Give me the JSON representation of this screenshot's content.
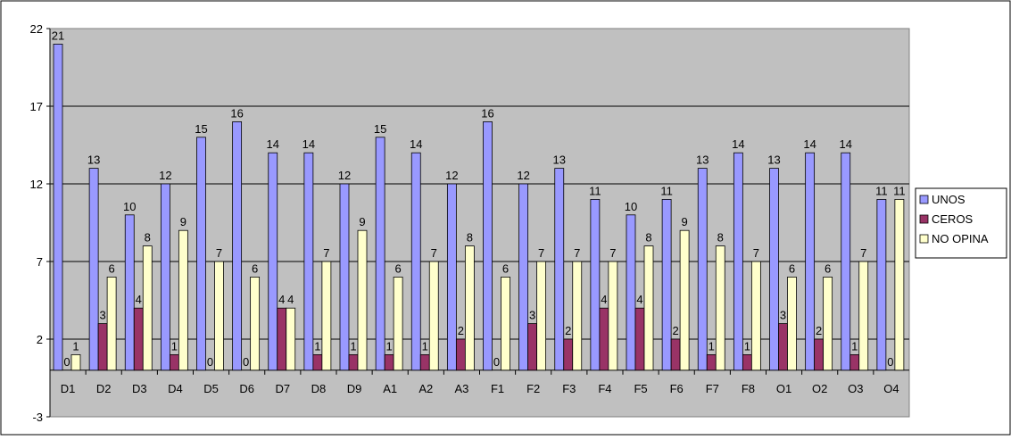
{
  "chart_data": {
    "type": "bar",
    "title": "",
    "xlabel": "",
    "ylabel": "",
    "ylim": [
      -3,
      22
    ],
    "yticks": [
      -3,
      2,
      7,
      12,
      17,
      22
    ],
    "grid": true,
    "legend_placement": "right",
    "categories": [
      "D1",
      "D2",
      "D3",
      "D4",
      "D5",
      "D6",
      "D7",
      "D8",
      "D9",
      "A1",
      "A2",
      "A3",
      "F1",
      "F2",
      "F3",
      "F4",
      "F5",
      "F6",
      "F7",
      "F8",
      "O1",
      "O2",
      "O3",
      "O4"
    ],
    "series": [
      {
        "name": "UNOS",
        "color": "#9999ff",
        "values": [
          21,
          13,
          10,
          12,
          15,
          16,
          14,
          14,
          12,
          15,
          14,
          12,
          16,
          12,
          13,
          11,
          10,
          11,
          13,
          14,
          13,
          14,
          14,
          11
        ]
      },
      {
        "name": "CEROS",
        "color": "#993366",
        "values": [
          0,
          3,
          4,
          1,
          0,
          0,
          4,
          1,
          1,
          1,
          1,
          2,
          0,
          3,
          2,
          4,
          4,
          2,
          1,
          1,
          3,
          2,
          1,
          0
        ]
      },
      {
        "name": "NO OPINA",
        "color": "#ffffcc",
        "values": [
          1,
          6,
          8,
          9,
          7,
          6,
          4,
          7,
          9,
          6,
          7,
          8,
          6,
          7,
          7,
          7,
          8,
          9,
          8,
          7,
          6,
          6,
          7,
          11
        ]
      }
    ],
    "plot_background": "#c0c0c0"
  }
}
